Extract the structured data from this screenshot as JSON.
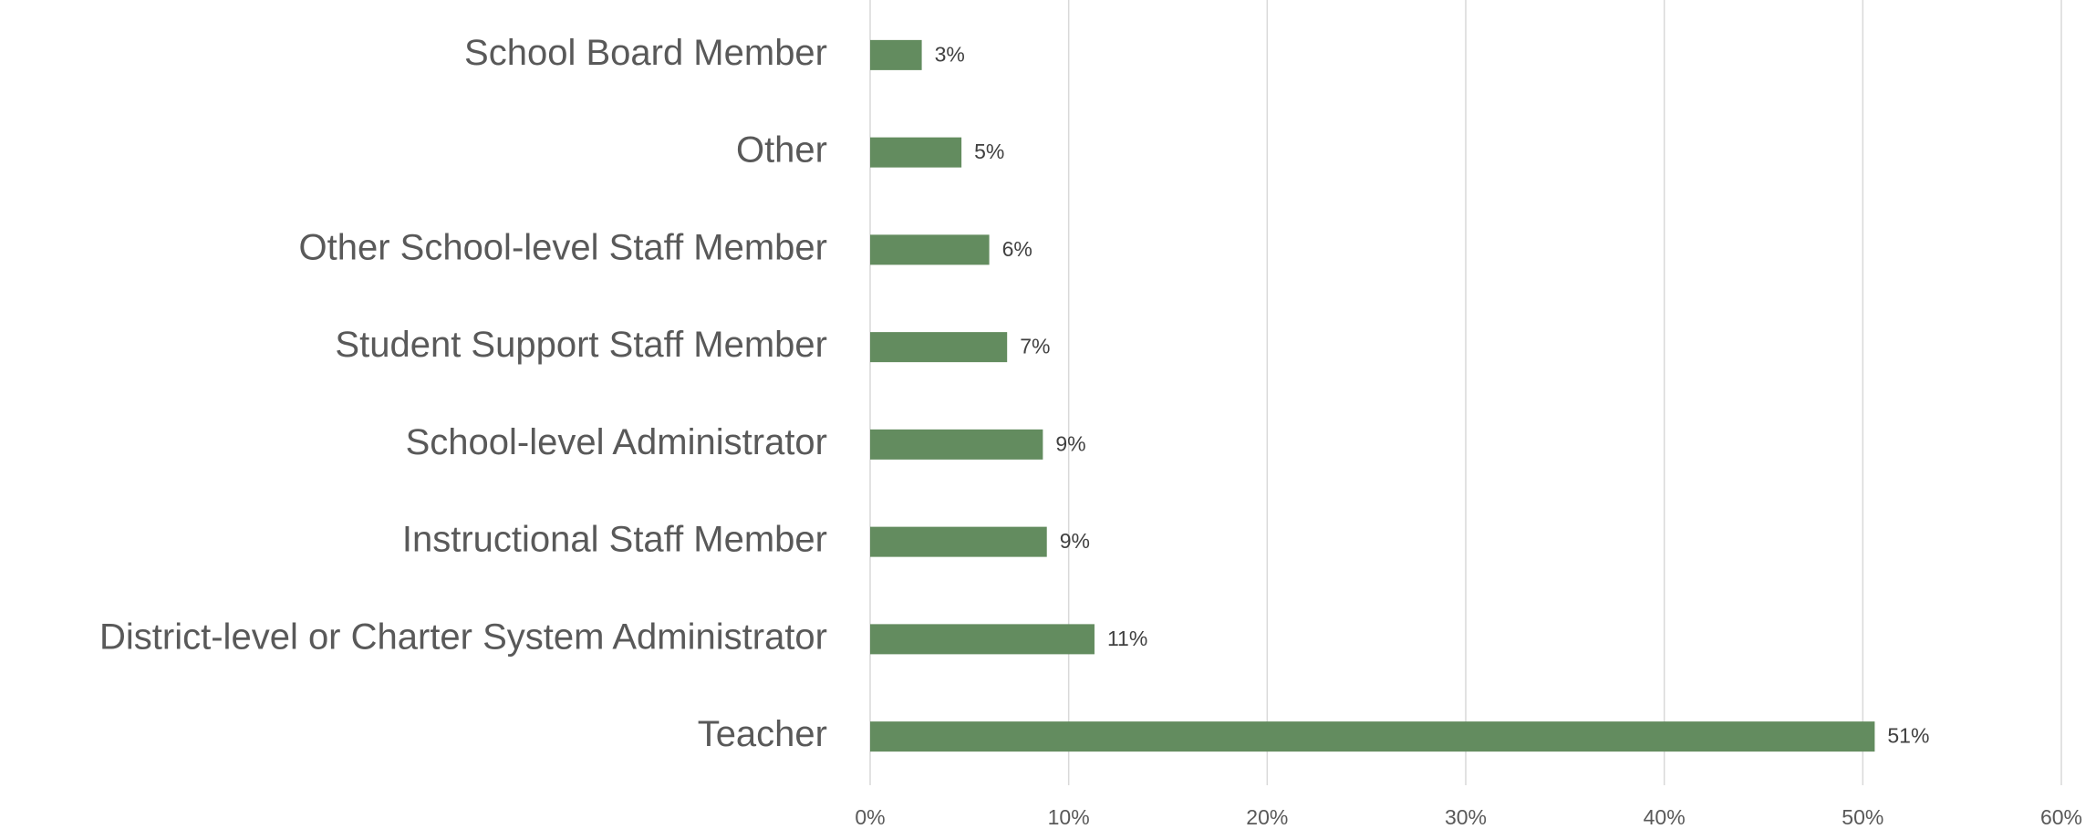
{
  "chart_data": {
    "type": "bar",
    "orientation": "horizontal",
    "categories": [
      "School Board Member",
      "Other",
      "Other School-level Staff Member",
      "Student Support Staff Member",
      "School-level Administrator",
      "Instructional Staff Member",
      "District-level or Charter System Administrator",
      "Teacher"
    ],
    "values": [
      2.6,
      4.6,
      6.0,
      6.9,
      8.7,
      8.9,
      11.3,
      50.6
    ],
    "value_labels": [
      "3%",
      "5%",
      "6%",
      "7%",
      "9%",
      "9%",
      "11%",
      "51%"
    ],
    "color": "#638c5f",
    "xlim": [
      0,
      60
    ],
    "xticks": [
      {
        "value": 0,
        "label": "0%"
      },
      {
        "value": 10,
        "label": "10%"
      },
      {
        "value": 20,
        "label": "20%"
      },
      {
        "value": 30,
        "label": "30%"
      },
      {
        "value": 40,
        "label": "40%"
      },
      {
        "value": 50,
        "label": "50%"
      },
      {
        "value": 60,
        "label": "60%"
      }
    ],
    "grid": true
  }
}
